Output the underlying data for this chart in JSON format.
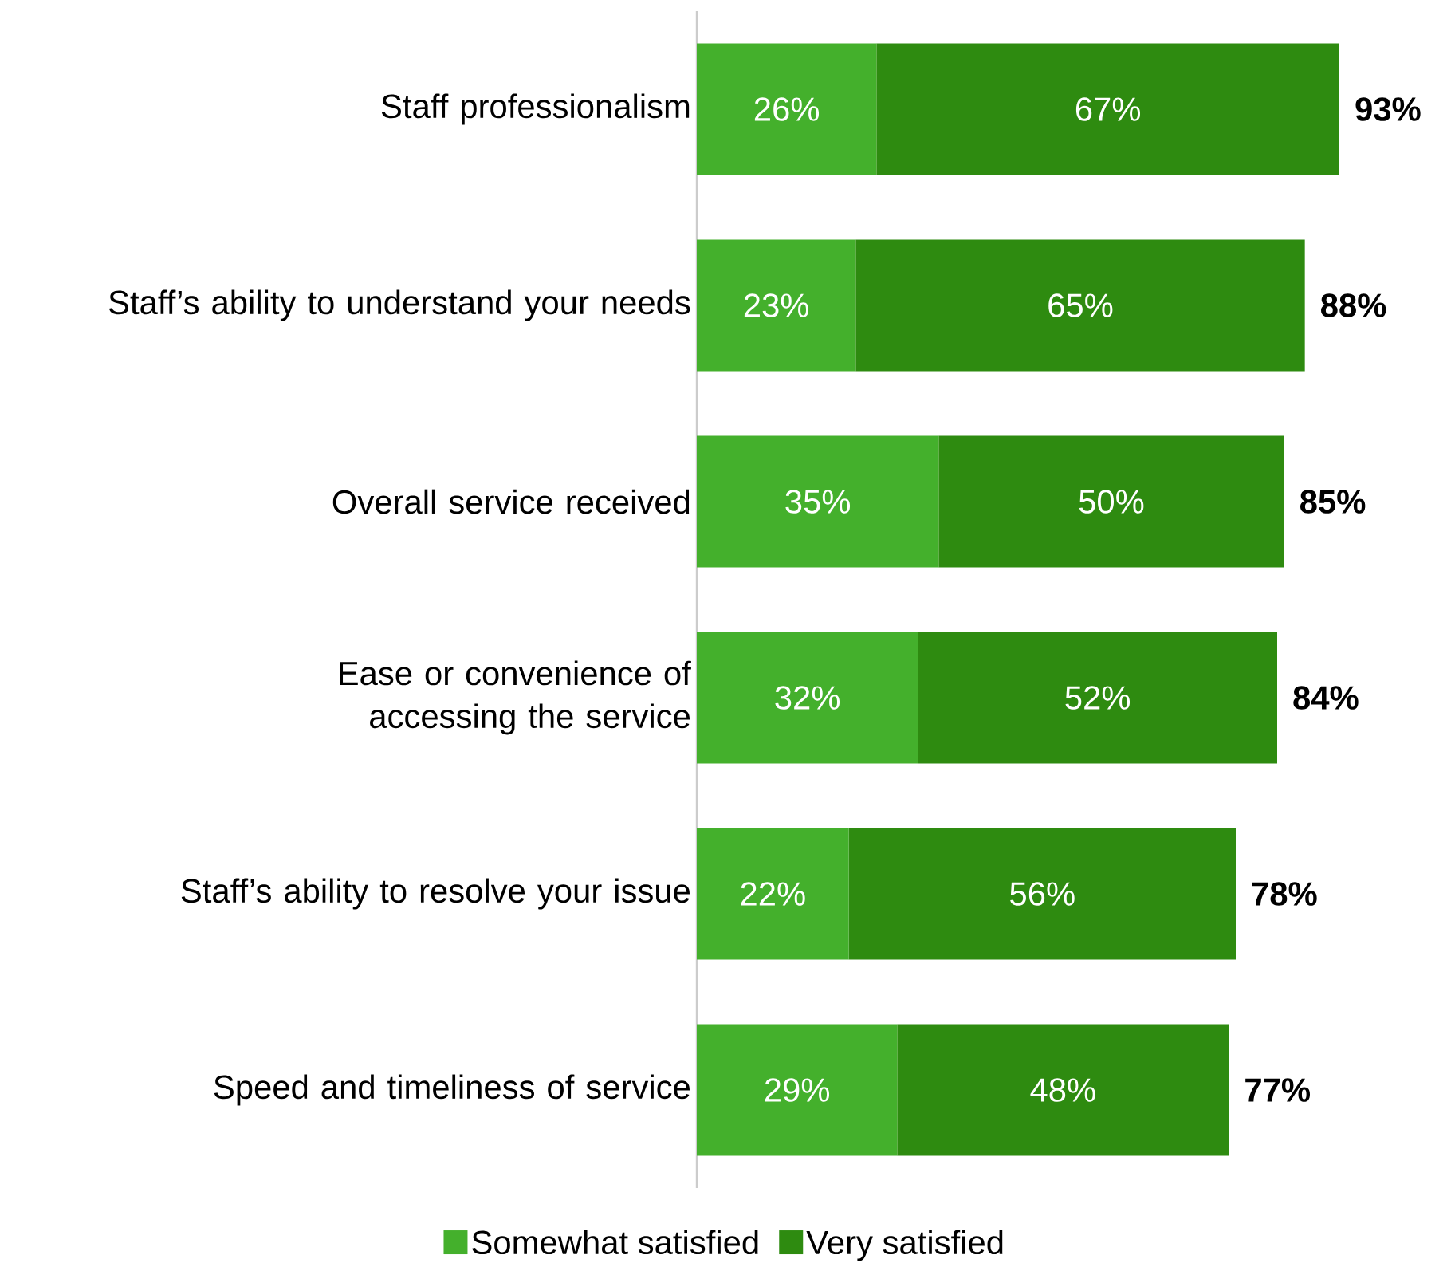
{
  "chart_data": {
    "type": "bar",
    "orientation": "horizontal",
    "stacked": true,
    "categories": [
      "Staff professionalism",
      "Staff’s ability to understand your needs",
      "Overall service received",
      "Ease or convenience of accessing the service",
      "Staff’s ability to resolve your issue",
      "Speed and timeliness of service"
    ],
    "series": [
      {
        "name": "Somewhat satisfied",
        "color": "#44b02c",
        "values": [
          26,
          23,
          35,
          32,
          22,
          29
        ],
        "value_labels": [
          "26%",
          "23%",
          "35%",
          "32%",
          "22%",
          "29%"
        ]
      },
      {
        "name": "Very satisfied",
        "color": "#2e8b10",
        "values": [
          67,
          65,
          50,
          52,
          56,
          48
        ],
        "value_labels": [
          "67%",
          "65%",
          "50%",
          "52%",
          "56%",
          "48%"
        ]
      }
    ],
    "totals": [
      "93%",
      "88%",
      "85%",
      "84%",
      "78%",
      "77%"
    ],
    "legend": "bottom"
  }
}
